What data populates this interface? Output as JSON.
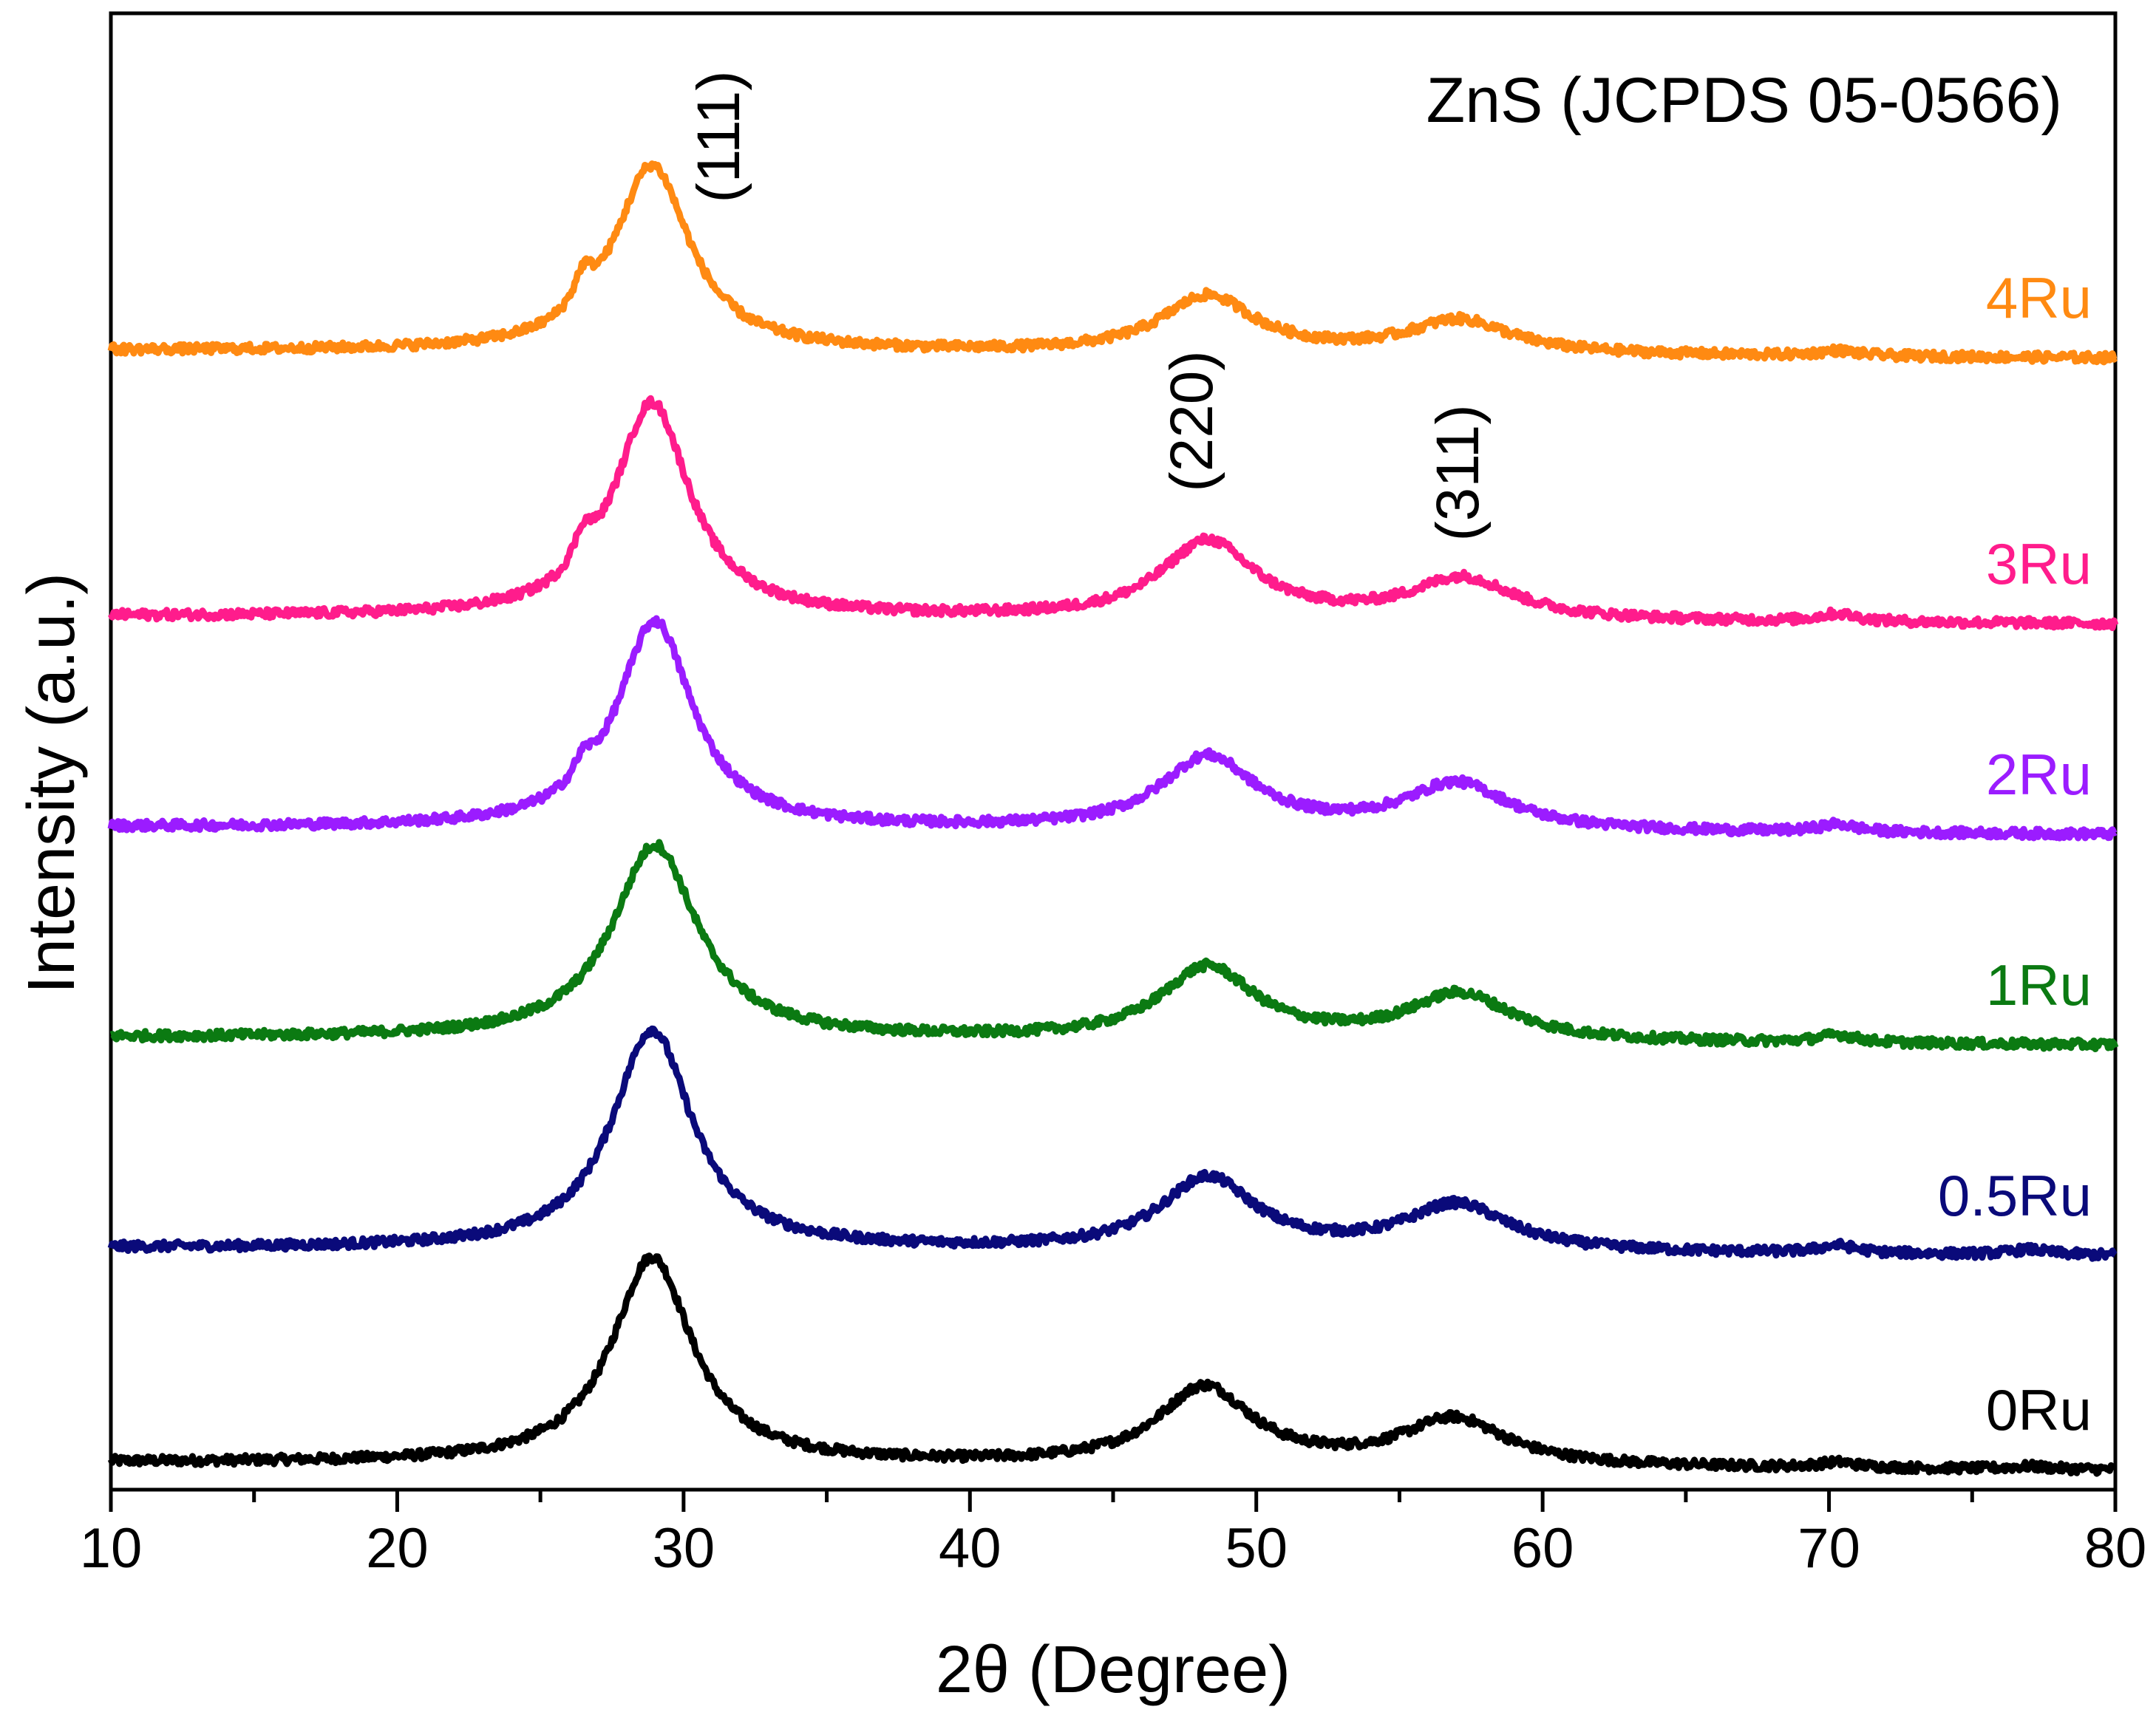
{
  "chart_data": {
    "type": "line",
    "title": "ZnS (JCPDS 05-0566)",
    "xlabel": "2θ (Degree)",
    "ylabel": "Intensity (a.u.)",
    "xlim": [
      10,
      80
    ],
    "x_ticks": [
      10,
      20,
      30,
      40,
      50,
      60,
      70,
      80
    ],
    "y_ticks_shown": false,
    "grid": false,
    "legend": "inline labels at right end of each trace",
    "peak_annotations": [
      {
        "label": "(111)",
        "x": 29.0
      },
      {
        "label": "(220)",
        "x": 48.3
      },
      {
        "label": "(311)",
        "x": 57.1
      }
    ],
    "series": [
      {
        "name": "0Ru",
        "color": "#000000",
        "offset": 0,
        "baseline": [
          [
            10,
            0.03
          ],
          [
            80,
            0.0
          ]
        ],
        "peaks": [
          {
            "center": 28.9,
            "height": 0.8,
            "width": 1.7
          },
          {
            "center": 48.2,
            "height": 0.3,
            "width": 2.0
          },
          {
            "center": 56.9,
            "height": 0.18,
            "width": 2.2
          },
          {
            "center": 70.3,
            "height": 0.02,
            "width": 0.8
          },
          {
            "center": 77.0,
            "height": 0.01,
            "width": 0.8
          }
        ]
      },
      {
        "name": "0.5Ru",
        "color": "#0a0a7a",
        "offset": 1,
        "baseline": [
          [
            10,
            0.03
          ],
          [
            80,
            0.0
          ]
        ],
        "peaks": [
          {
            "center": 28.9,
            "height": 0.85,
            "width": 1.7
          },
          {
            "center": 48.3,
            "height": 0.28,
            "width": 2.0
          },
          {
            "center": 57.0,
            "height": 0.18,
            "width": 2.2
          },
          {
            "center": 70.3,
            "height": 0.03,
            "width": 0.8
          },
          {
            "center": 77.0,
            "height": 0.02,
            "width": 0.8
          }
        ]
      },
      {
        "name": "1Ru",
        "color": "#0b7a12",
        "offset": 2,
        "baseline": [
          [
            10,
            0.03
          ],
          [
            80,
            0.0
          ]
        ],
        "peaks": [
          {
            "center": 29.0,
            "height": 0.75,
            "width": 1.8
          },
          {
            "center": 48.3,
            "height": 0.28,
            "width": 2.0
          },
          {
            "center": 57.1,
            "height": 0.18,
            "width": 2.2
          },
          {
            "center": 70.3,
            "height": 0.03,
            "width": 0.8
          }
        ]
      },
      {
        "name": "2Ru",
        "color": "#9b1cff",
        "offset": 3,
        "baseline": [
          [
            10,
            0.03
          ],
          [
            80,
            0.0
          ]
        ],
        "peaks": [
          {
            "center": 29.0,
            "height": 0.8,
            "width": 1.6
          },
          {
            "center": 26.5,
            "height": 0.08,
            "width": 0.4
          },
          {
            "center": 48.3,
            "height": 0.28,
            "width": 2.0
          },
          {
            "center": 57.0,
            "height": 0.18,
            "width": 2.2
          },
          {
            "center": 70.3,
            "height": 0.03,
            "width": 0.8
          }
        ]
      },
      {
        "name": "3Ru",
        "color": "#ff1c8c",
        "offset": 4,
        "baseline": [
          [
            10,
            0.03
          ],
          [
            80,
            0.0
          ]
        ],
        "peaks": [
          {
            "center": 28.9,
            "height": 0.83,
            "width": 1.6
          },
          {
            "center": 26.5,
            "height": 0.12,
            "width": 0.4
          },
          {
            "center": 48.3,
            "height": 0.3,
            "width": 2.0
          },
          {
            "center": 57.2,
            "height": 0.16,
            "width": 2.2
          },
          {
            "center": 70.3,
            "height": 0.03,
            "width": 0.8
          }
        ]
      },
      {
        "name": "4Ru",
        "color": "#ff8a12",
        "offset": 5,
        "baseline": [
          [
            10,
            0.03
          ],
          [
            80,
            0.0
          ]
        ],
        "peaks": [
          {
            "center": 28.9,
            "height": 0.72,
            "width": 1.6
          },
          {
            "center": 26.5,
            "height": 0.12,
            "width": 0.4
          },
          {
            "center": 48.3,
            "height": 0.22,
            "width": 2.0
          },
          {
            "center": 57.1,
            "height": 0.13,
            "width": 2.2
          },
          {
            "center": 70.3,
            "height": 0.02,
            "width": 0.8
          }
        ]
      }
    ]
  }
}
